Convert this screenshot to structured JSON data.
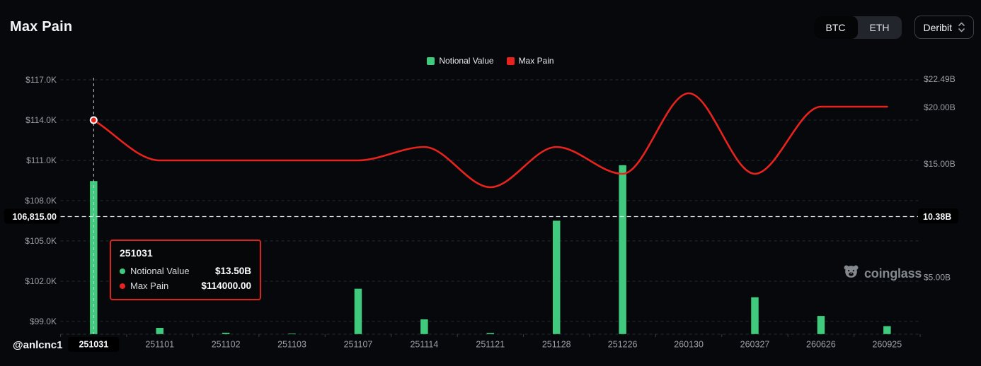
{
  "header": {
    "title": "Max Pain"
  },
  "controls": {
    "coin_toggle": {
      "options": [
        "BTC",
        "ETH"
      ],
      "selected": "BTC"
    },
    "exchange_select": {
      "value": "Deribit"
    }
  },
  "legend": {
    "items": [
      {
        "label": "Notional Value",
        "color": "#3fca7e"
      },
      {
        "label": "Max Pain",
        "color": "#e8231d"
      }
    ]
  },
  "chart_data": {
    "type": "combo-bar-line",
    "categories": [
      "251031",
      "251101",
      "251102",
      "251103",
      "251107",
      "251114",
      "251121",
      "251128",
      "251226",
      "260130",
      "260327",
      "260626",
      "260925"
    ],
    "series": [
      {
        "name": "Notional Value",
        "type": "bar",
        "axis": "right",
        "unit": "billion USD",
        "color": "#3fca7e",
        "values": [
          13.5,
          0.55,
          0.12,
          0.05,
          4.0,
          1.3,
          0.1,
          10.0,
          14.9,
          0,
          3.25,
          1.6,
          0.7
        ]
      },
      {
        "name": "Max Pain",
        "type": "line",
        "axis": "left",
        "unit": "USD",
        "color": "#e8231d",
        "values": [
          114000,
          111000,
          111000,
          111000,
          111000,
          112000,
          109000,
          112000,
          110000,
          116000,
          110000,
          115000,
          115000
        ]
      }
    ],
    "left_axis": {
      "ticks": [
        {
          "label": "$117.0K",
          "value": 117000
        },
        {
          "label": "$114.0K",
          "value": 114000
        },
        {
          "label": "$111.0K",
          "value": 111000
        },
        {
          "label": "$108.0K",
          "value": 108000
        },
        {
          "label": "$105.0K",
          "value": 105000
        },
        {
          "label": "$102.0K",
          "value": 102000
        },
        {
          "label": "$99.0K",
          "value": 99000
        }
      ],
      "highlight": {
        "label": "106,815.00",
        "value": 106815
      }
    },
    "right_axis": {
      "ticks": [
        {
          "label": "$22.49B",
          "value": 22.49
        },
        {
          "label": "$20.00B",
          "value": 20
        },
        {
          "label": "$15.00B",
          "value": 15
        },
        {
          "label": "$5.00B",
          "value": 5
        }
      ],
      "highlight": {
        "label": "10.38B",
        "value": 10.38
      }
    },
    "highlighted_category": "251031",
    "marker": {
      "category": "251031",
      "value": 114000
    },
    "grid": "horizontal-dashed",
    "legend_position": "top-center"
  },
  "tooltip": {
    "title": "251031",
    "rows": [
      {
        "label": "Notional Value",
        "value": "$13.50B",
        "color": "#3fca7e"
      },
      {
        "label": "Max Pain",
        "value": "$114000.00",
        "color": "#e8231d"
      }
    ]
  },
  "watermark": {
    "label": "coinglass"
  },
  "credit": {
    "label": "@anlcnc1"
  }
}
